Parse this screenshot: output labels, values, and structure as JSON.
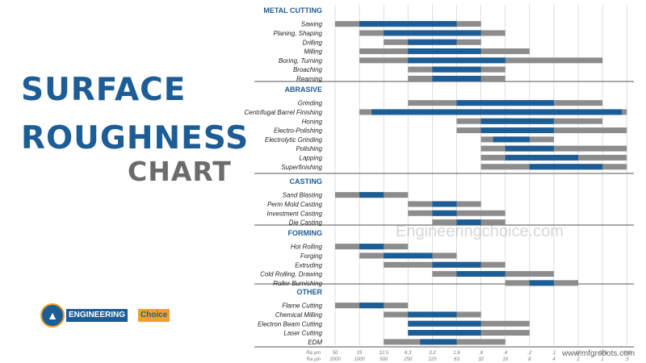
{
  "title": {
    "line1": "SURFACE",
    "line2": "ROUGHNESS",
    "line3": "CHART"
  },
  "logo": {
    "part1": "ENGINEERING",
    "part2": "Choice"
  },
  "watermark": "Engineeringchoice.com",
  "watermark2": "www.mfgrobots.com",
  "colors": {
    "average": "#1d5d96",
    "less_frequent": "#8c8c8c",
    "title_blue": "#1d5d96",
    "title_gray": "#6b6b6b"
  },
  "chart_data": {
    "type": "bar",
    "axis": {
      "ra_um_label": "Ra µm",
      "ra_uin_label": "Ra µin",
      "ra_um": [
        "50",
        "25",
        "12.5",
        "6.3",
        "3.2",
        "1.6",
        ".8",
        ".4",
        ".2",
        ".1",
        ".05",
        ".025",
        ".012"
      ],
      "ra_uin": [
        "2000",
        "1000",
        "500",
        "250",
        "125",
        "63",
        "32",
        "16",
        "8",
        "4",
        "2",
        "1",
        ".5"
      ]
    },
    "sections": [
      {
        "name": "METAL CUTTING",
        "processes": [
          {
            "name": "Sawing",
            "range": [
              0,
              6
            ],
            "average": [
              1,
              5
            ]
          },
          {
            "name": "Planing, Shaping",
            "range": [
              1,
              7
            ],
            "average": [
              2,
              6
            ]
          },
          {
            "name": "Drilling",
            "range": [
              2,
              6
            ],
            "average": [
              3,
              5
            ]
          },
          {
            "name": "Milling",
            "range": [
              1,
              8
            ],
            "average": [
              3,
              6
            ]
          },
          {
            "name": "Boring, Turning",
            "range": [
              1,
              11
            ],
            "average": [
              3,
              7
            ]
          },
          {
            "name": "Broaching",
            "range": [
              3,
              7
            ],
            "average": [
              4,
              6
            ]
          },
          {
            "name": "Reaming",
            "range": [
              3,
              7
            ],
            "average": [
              4,
              6
            ]
          }
        ]
      },
      {
        "name": "ABRASIVE",
        "processes": [
          {
            "name": "Grinding",
            "range": [
              3,
              11
            ],
            "average": [
              5,
              9
            ]
          },
          {
            "name": "Centrifugal Barrel Finishing",
            "range": [
              1,
              12
            ],
            "average": [
              1.5,
              11.8
            ]
          },
          {
            "name": "Honing",
            "range": [
              5,
              11
            ],
            "average": [
              6,
              9
            ]
          },
          {
            "name": "Electro-Polishing",
            "range": [
              5,
              12
            ],
            "average": [
              6,
              9
            ]
          },
          {
            "name": "Electrolytic Grinding",
            "range": [
              6,
              9
            ],
            "average": [
              6.5,
              8
            ]
          },
          {
            "name": "Polishing",
            "range": [
              6,
              12
            ],
            "average": [
              7,
              9
            ]
          },
          {
            "name": "Lapping",
            "range": [
              6,
              12
            ],
            "average": [
              7,
              10
            ]
          },
          {
            "name": "Superfinishing",
            "range": [
              6,
              12
            ],
            "average": [
              8,
              11
            ]
          }
        ]
      },
      {
        "name": "CASTING",
        "processes": [
          {
            "name": "Sand Blasting",
            "range": [
              0,
              3
            ],
            "average": [
              1,
              2
            ]
          },
          {
            "name": "Perm Mold Casting",
            "range": [
              3,
              6
            ],
            "average": [
              4,
              5
            ]
          },
          {
            "name": "Investment Casting",
            "range": [
              3,
              7
            ],
            "average": [
              4,
              5
            ]
          },
          {
            "name": "Die Casting",
            "range": [
              4,
              7
            ],
            "average": [
              5,
              6
            ]
          }
        ]
      },
      {
        "name": "FORMING",
        "processes": [
          {
            "name": "Hot Rolling",
            "range": [
              0,
              3
            ],
            "average": [
              1,
              2
            ]
          },
          {
            "name": "Forging",
            "range": [
              1,
              5
            ],
            "average": [
              2,
              4
            ]
          },
          {
            "name": "Extruding",
            "range": [
              2,
              7
            ],
            "average": [
              4,
              6
            ]
          },
          {
            "name": "Cold Rolling, Drawing",
            "range": [
              4,
              9
            ],
            "average": [
              5,
              7
            ]
          },
          {
            "name": "Roller Burnishing",
            "range": [
              7,
              10
            ],
            "average": [
              8,
              9
            ]
          }
        ]
      },
      {
        "name": "OTHER",
        "processes": [
          {
            "name": "Flame Cutting",
            "range": [
              0,
              3
            ],
            "average": [
              1,
              2
            ]
          },
          {
            "name": "Chemical Milling",
            "range": [
              2,
              6
            ],
            "average": [
              3,
              5
            ]
          },
          {
            "name": "Electron Beam Cutting",
            "range": [
              3,
              8
            ],
            "average": [
              3,
              6
            ]
          },
          {
            "name": "Laser Cutting",
            "range": [
              3,
              8
            ],
            "average": [
              3,
              6
            ]
          },
          {
            "name": "EDM",
            "range": [
              2,
              7
            ],
            "average": [
              3.5,
              5
            ]
          }
        ]
      }
    ]
  }
}
